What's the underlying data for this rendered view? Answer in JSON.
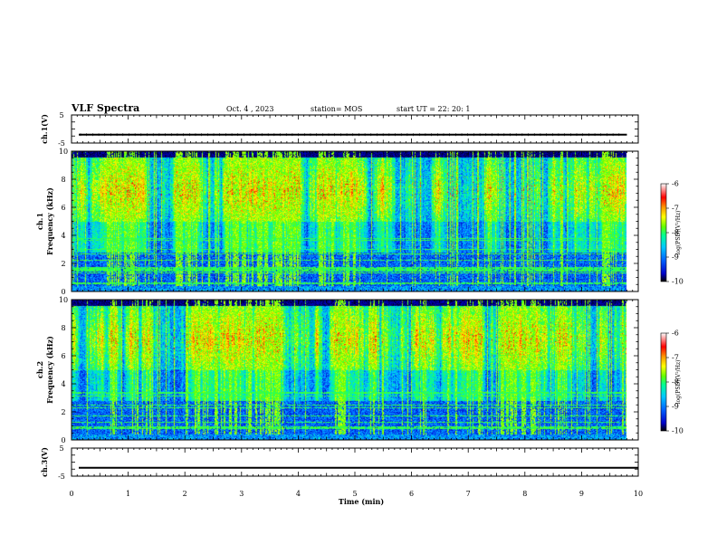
{
  "header": {
    "title": "VLF Spectra",
    "date": "Oct. 4 , 2023",
    "station": "station= MOS",
    "start": "start UT = 22: 20: 1"
  },
  "chart_data": {
    "type": "heatmap",
    "xlabel": "Time (min)",
    "xlim": [
      0,
      10
    ],
    "xticks": [
      "0",
      "1",
      "2",
      "3",
      "4",
      "5",
      "6",
      "7",
      "8",
      "9",
      "10"
    ],
    "panels": [
      {
        "name": "ch.1(V)",
        "type": "line",
        "ylabel": "ch.1(V)",
        "ylim": [
          -5,
          5
        ],
        "yticks": [
          "5",
          "-5"
        ],
        "trace_level": -2,
        "trace_end_min": 9.8
      },
      {
        "name": "ch.1 spectrogram",
        "type": "heatmap",
        "ylabel_top": "ch.1",
        "ylabel": "Frequency (kHz)",
        "ylim": [
          0,
          10
        ],
        "yticks": [
          "0",
          "2",
          "4",
          "6",
          "8",
          "10"
        ],
        "data_end_min": 9.8,
        "colorbar": {
          "label": "log(PSD)(V²/Hz)",
          "range": [
            -10,
            -6
          ],
          "ticks": [
            "-6",
            "-7",
            "-8",
            "-9",
            "-10"
          ]
        }
      },
      {
        "name": "ch.2 spectrogram",
        "type": "heatmap",
        "ylabel_top": "ch.2",
        "ylabel": "Frequency (kHz)",
        "ylim": [
          0,
          10
        ],
        "yticks": [
          "0",
          "2",
          "4",
          "6",
          "8",
          "10"
        ],
        "data_end_min": 9.8,
        "colorbar": {
          "label": "log(PSD)(V²/Hz)",
          "range": [
            -10,
            -6
          ],
          "ticks": [
            "-6",
            "-7",
            "-8",
            "-9",
            "-10"
          ]
        }
      },
      {
        "name": "ch.3(V)",
        "type": "line",
        "ylabel": "ch.3(V)",
        "ylim": [
          -5,
          5
        ],
        "yticks": [
          "5",
          "-5"
        ],
        "trace_level": -2,
        "trace_end_min": 10
      }
    ]
  },
  "colors": {
    "scale": [
      "#000000",
      "#0000c8",
      "#0064ff",
      "#00c8ff",
      "#00ff96",
      "#64ff00",
      "#ffff00",
      "#ff9600",
      "#ff0000",
      "#ffffff"
    ]
  }
}
